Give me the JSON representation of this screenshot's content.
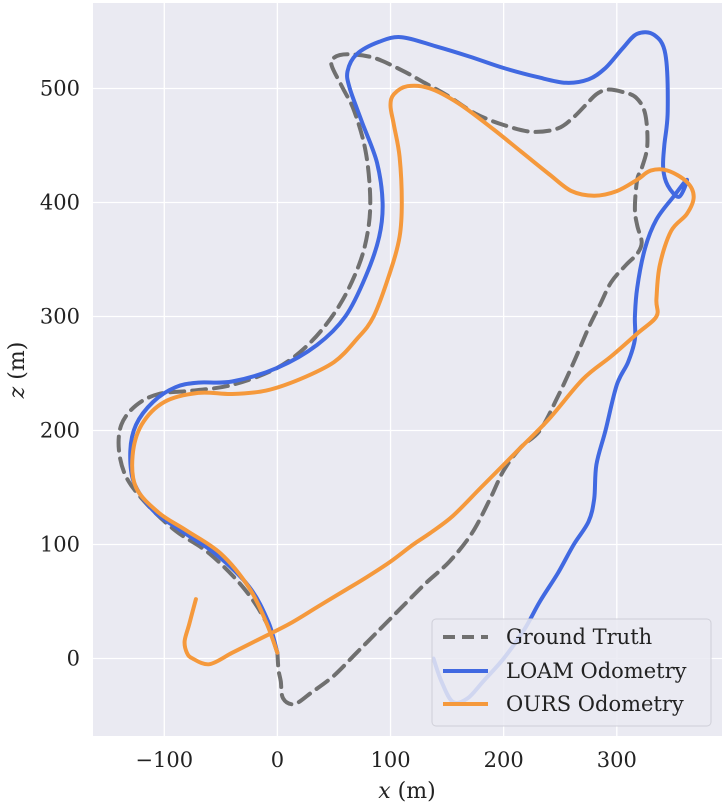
{
  "chart_data": {
    "type": "line",
    "xlabel": "x (m)",
    "ylabel": "z (m)",
    "xlabel_var": "x",
    "xlabel_unit": " (m)",
    "ylabel_var": "z",
    "ylabel_unit": " (m)",
    "xlim": [
      -163,
      393
    ],
    "ylim": [
      -68,
      575
    ],
    "xticks": [
      -100,
      0,
      100,
      200,
      300
    ],
    "xtick_labels": [
      "−100",
      "0",
      "100",
      "200",
      "300"
    ],
    "yticks": [
      0,
      100,
      200,
      300,
      400,
      500
    ],
    "ytick_labels": [
      "0",
      "100",
      "200",
      "300",
      "400",
      "500"
    ],
    "grid": true,
    "legend_position": "bottom-right",
    "background": "#eaeaf2",
    "series": [
      {
        "name": "Ground Truth",
        "color": "#707070",
        "dash": true,
        "x": [
          0,
          -10,
          -30,
          -60,
          -90,
          -115,
          -133,
          -140,
          -138,
          -125,
          -105,
          -75,
          -40,
          0,
          30,
          55,
          72,
          80,
          82,
          78,
          68,
          58,
          48,
          50,
          62,
          85,
          110,
          130,
          150,
          175,
          200,
          225,
          248,
          262,
          272,
          282,
          292,
          305,
          317,
          325,
          327,
          322,
          318,
          316,
          318,
          322,
          318,
          308,
          295,
          285,
          275,
          262,
          248,
          232,
          215,
          200,
          188,
          172,
          152,
          130,
          110,
          90,
          70,
          50,
          30,
          15,
          5,
          3,
          1,
          0
        ],
        "y": [
          5,
          32,
          62,
          92,
          112,
          135,
          158,
          182,
          205,
          222,
          232,
          235,
          240,
          255,
          278,
          310,
          345,
          375,
          405,
          445,
          480,
          500,
          520,
          527,
          530,
          527,
          516,
          505,
          494,
          478,
          468,
          462,
          465,
          475,
          485,
          495,
          499,
          497,
          492,
          478,
          450,
          430,
          420,
          395,
          380,
          365,
          355,
          345,
          330,
          310,
          290,
          260,
          230,
          200,
          185,
          165,
          140,
          110,
          85,
          65,
          45,
          25,
          5,
          -15,
          -30,
          -40,
          -35,
          -20,
          -10,
          5
        ]
      },
      {
        "name": "LOAM Odometry",
        "color": "#4169e1",
        "dash": false,
        "x": [
          0,
          -8,
          -25,
          -55,
          -85,
          -110,
          -127,
          -130,
          -125,
          -110,
          -90,
          -70,
          -40,
          0,
          35,
          60,
          78,
          90,
          93,
          88,
          75,
          64,
          62,
          70,
          90,
          110,
          140,
          170,
          200,
          230,
          255,
          275,
          290,
          305,
          318,
          333,
          343,
          345,
          342,
          341,
          345,
          355,
          362,
          350,
          335,
          325,
          318,
          316,
          316,
          310,
          300,
          290,
          282,
          280,
          275,
          262,
          248,
          232,
          218,
          200,
          182,
          168,
          155,
          145,
          138
        ],
        "y": [
          5,
          32,
          63,
          92,
          112,
          130,
          155,
          182,
          205,
          225,
          238,
          242,
          243,
          255,
          275,
          300,
          335,
          370,
          400,
          435,
          470,
          500,
          515,
          530,
          541,
          545,
          537,
          528,
          518,
          510,
          505,
          508,
          518,
          535,
          548,
          547,
          530,
          480,
          450,
          430,
          415,
          405,
          420,
          405,
          385,
          360,
          325,
          300,
          280,
          260,
          240,
          200,
          170,
          140,
          120,
          100,
          75,
          50,
          25,
          0,
          -20,
          -35,
          -38,
          -20,
          0
        ]
      },
      {
        "name": "OURS Odometry",
        "color": "#f5993c",
        "dash": false,
        "x": [
          0,
          -10,
          -25,
          -50,
          -80,
          -105,
          -125,
          -128,
          -120,
          -100,
          -70,
          -40,
          -10,
          20,
          50,
          70,
          85,
          100,
          108,
          110,
          108,
          103,
          100,
          103,
          115,
          135,
          160,
          190,
          215,
          240,
          260,
          280,
          300,
          318,
          330,
          345,
          362,
          368,
          362,
          348,
          338,
          335,
          335,
          318,
          295,
          270,
          240,
          210,
          180,
          155,
          135,
          120,
          100,
          80,
          60,
          35,
          10,
          -20,
          -40,
          -60,
          -75,
          -80,
          -82,
          -78,
          -72
        ],
        "y": [
          5,
          32,
          62,
          92,
          112,
          128,
          150,
          178,
          205,
          225,
          233,
          232,
          235,
          245,
          260,
          280,
          300,
          340,
          370,
          400,
          440,
          468,
          485,
          495,
          502,
          500,
          487,
          465,
          445,
          425,
          410,
          406,
          410,
          420,
          428,
          428,
          418,
          405,
          390,
          375,
          345,
          315,
          300,
          285,
          265,
          245,
          210,
          180,
          150,
          125,
          110,
          100,
          85,
          72,
          60,
          45,
          30,
          15,
          5,
          -5,
          0,
          5,
          15,
          30,
          52
        ]
      }
    ]
  }
}
